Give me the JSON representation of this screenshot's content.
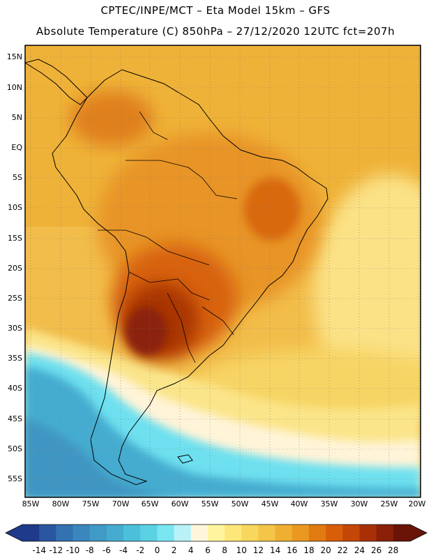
{
  "header": {
    "line1": "CPTEC/INPE/MCT –  Eta Model 15km – GFS",
    "line2": "Absolute Temperature (C) 850hPa – 27/12/2020 12UTC fct=207h"
  },
  "map": {
    "lat_labels": [
      "15N",
      "10N",
      "5N",
      "EQ",
      "5S",
      "10S",
      "15S",
      "20S",
      "25S",
      "30S",
      "35S",
      "40S",
      "45S",
      "50S",
      "55S"
    ],
    "lon_labels": [
      "85W",
      "80W",
      "75W",
      "70W",
      "65W",
      "60W",
      "55W",
      "50W",
      "45W",
      "40W",
      "35W",
      "30W",
      "25W",
      "20W"
    ]
  },
  "colorbar": {
    "labels": [
      "-14",
      "-12",
      "-10",
      "-8",
      "-6",
      "-4",
      "-2",
      "0",
      "2",
      "4",
      "6",
      "8",
      "10",
      "12",
      "14",
      "16",
      "18",
      "20",
      "22",
      "24",
      "26",
      "28"
    ],
    "colors": [
      "#1f3a8a",
      "#2a56a0",
      "#3272b0",
      "#3a86bd",
      "#3f9ac6",
      "#45acd0",
      "#4cc0da",
      "#5ad2e4",
      "#7ae6f2",
      "#b8f2f8",
      "#fff6dc",
      "#fff59e",
      "#fde67a",
      "#f8d75e",
      "#f3c548",
      "#efb032",
      "#ea9822",
      "#e27a12",
      "#d85e0a",
      "#c44708",
      "#a93006",
      "#8a2008",
      "#6a1408"
    ],
    "left_color": "#1f3a8a",
    "right_color": "#6a1408"
  }
}
